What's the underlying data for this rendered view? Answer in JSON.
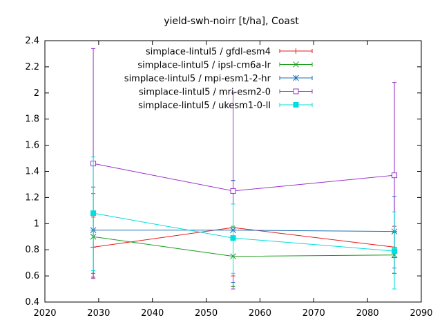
{
  "chart_data": {
    "type": "line",
    "title": "yield-swh-noirr [t/ha], Coast",
    "xlabel": "",
    "ylabel": "",
    "xlim": [
      2020,
      2090
    ],
    "ylim": [
      0.4,
      2.4
    ],
    "x_ticks": [
      2020,
      2030,
      2040,
      2050,
      2060,
      2070,
      2080,
      2090
    ],
    "y_ticks": [
      0.4,
      0.6,
      0.8,
      1,
      1.2,
      1.4,
      1.6,
      1.8,
      2,
      2.2,
      2.4
    ],
    "x_tick_labels": [
      "2020",
      "2030",
      "2040",
      "2050",
      "2060",
      "2070",
      "2080",
      "2090"
    ],
    "y_tick_labels": [
      "0.4",
      "0.6",
      "0.8",
      "1",
      "1.2",
      "1.4",
      "1.6",
      "1.8",
      "2",
      "2.2",
      "2.4"
    ],
    "grid": false,
    "legend_position": "top-right",
    "x": [
      2029,
      2055,
      2085
    ],
    "series": [
      {
        "name": "simplace-lintul5 / gfdl-esm4",
        "color": "#e41a1c",
        "marker": "plus",
        "values": [
          0.82,
          0.97,
          0.82
        ],
        "err_low": [
          0.59,
          0.6,
          0.62
        ],
        "err_high": [
          1.05,
          1.33,
          0.98
        ]
      },
      {
        "name": "simplace-lintul5 / ipsl-cm6a-lr",
        "color": "#1a9a1a",
        "marker": "x",
        "values": [
          0.9,
          0.75,
          0.76
        ],
        "err_low": [
          0.58,
          0.52,
          0.62
        ],
        "err_high": [
          1.23,
          0.98,
          0.93
        ]
      },
      {
        "name": "simplace-lintul5 / mpi-esm1-2-hr",
        "color": "#1a6fb4",
        "marker": "star",
        "values": [
          0.95,
          0.95,
          0.94
        ],
        "err_low": [
          0.62,
          0.55,
          0.74
        ],
        "err_high": [
          1.28,
          1.33,
          1.21
        ]
      },
      {
        "name": "simplace-lintul5 / mri-esm2-0",
        "color": "#9932cc",
        "marker": "open-square",
        "values": [
          1.46,
          1.25,
          1.37
        ],
        "err_low": [
          0.58,
          0.5,
          0.66
        ],
        "err_high": [
          2.34,
          2.0,
          2.08
        ]
      },
      {
        "name": "simplace-lintul5 / ukesm1-0-ll",
        "color": "#00dede",
        "marker": "filled-square",
        "values": [
          1.08,
          0.89,
          0.79
        ],
        "err_low": [
          0.64,
          0.62,
          0.5
        ],
        "err_high": [
          1.51,
          1.15,
          1.09
        ]
      }
    ]
  }
}
